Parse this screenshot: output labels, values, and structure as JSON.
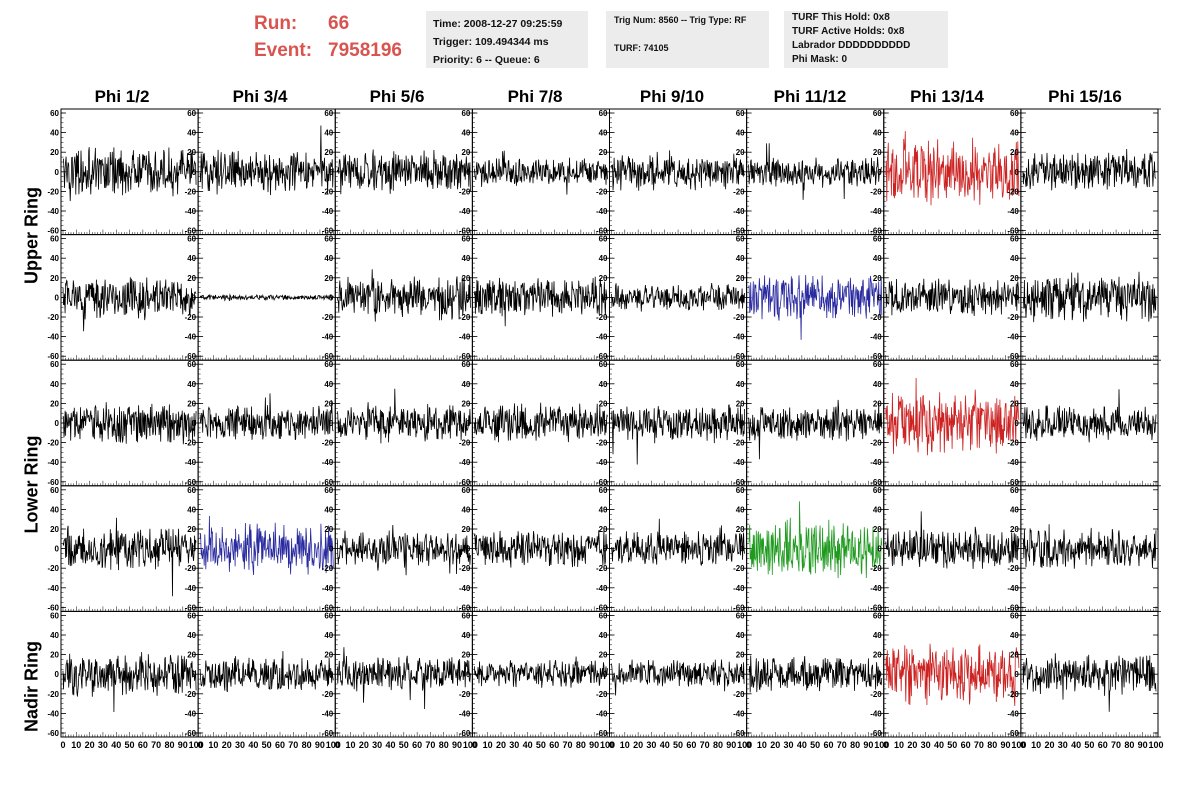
{
  "header": {
    "run_label": "Run:",
    "run_value": "66",
    "event_label": "Event:",
    "event_value": "7958196",
    "time": "Time: 2008-12-27 09:25:59",
    "trigger": "Trigger: 109.494344 ms",
    "priority": "Priority: 6 -- Queue: 6",
    "trig_num": "Trig Num: 8560 -- Trig Type: RF",
    "turf": "TURF: 74105",
    "turf_this_hold": "TURF This Hold: 0x8",
    "turf_active_holds": "TURF Active Holds: 0x8",
    "labrador": "Labrador DDDDDDDDDD",
    "phi_mask": "Phi Mask: 0"
  },
  "columns": [
    "Phi 1/2",
    "Phi 3/4",
    "Phi 5/6",
    "Phi 7/8",
    "Phi 9/10",
    "Phi 11/12",
    "Phi 13/14",
    "Phi 15/16"
  ],
  "rings": [
    "Upper Ring",
    "Lower Ring",
    "Nadir Ring"
  ],
  "colors": {
    "run_text": "#d9534f",
    "trace_default": "#000000",
    "trace_red": "#cc2222",
    "trace_blue": "#2a2aa0",
    "trace_green": "#1f9a1f",
    "info_box_bg": "#ececec"
  },
  "chart_data": {
    "type": "line",
    "title": "",
    "xlabel": "",
    "ylabel": "",
    "xlim": [
      0,
      100
    ],
    "ylim": [
      -60,
      60
    ],
    "x_tick_labels": [
      "0",
      "10",
      "20",
      "30",
      "40",
      "50",
      "60",
      "70",
      "80",
      "90",
      "100"
    ],
    "y_tick_labels": [
      "-60",
      "-40",
      "-20",
      "0",
      "20",
      "40",
      "60"
    ],
    "grid": false,
    "panel_rows": 5,
    "panel_cols": 8,
    "samples_per_trace": 260,
    "highlighted_panels": [
      {
        "row": 0,
        "col": 6,
        "color": "red"
      },
      {
        "row": 1,
        "col": 5,
        "color": "blue"
      },
      {
        "row": 2,
        "col": 6,
        "color": "red"
      },
      {
        "row": 3,
        "col": 1,
        "color": "blue"
      },
      {
        "row": 3,
        "col": 5,
        "color": "green"
      },
      {
        "row": 4,
        "col": 6,
        "color": "red"
      }
    ],
    "amplitudes": [
      [
        18,
        16,
        16,
        11,
        14,
        11,
        24,
        14
      ],
      [
        16,
        2,
        16,
        15,
        10,
        18,
        14,
        18
      ],
      [
        15,
        13,
        14,
        14,
        14,
        13,
        23,
        13
      ],
      [
        16,
        19,
        13,
        14,
        13,
        22,
        15,
        15
      ],
      [
        16,
        13,
        13,
        10,
        11,
        14,
        23,
        15
      ]
    ]
  }
}
